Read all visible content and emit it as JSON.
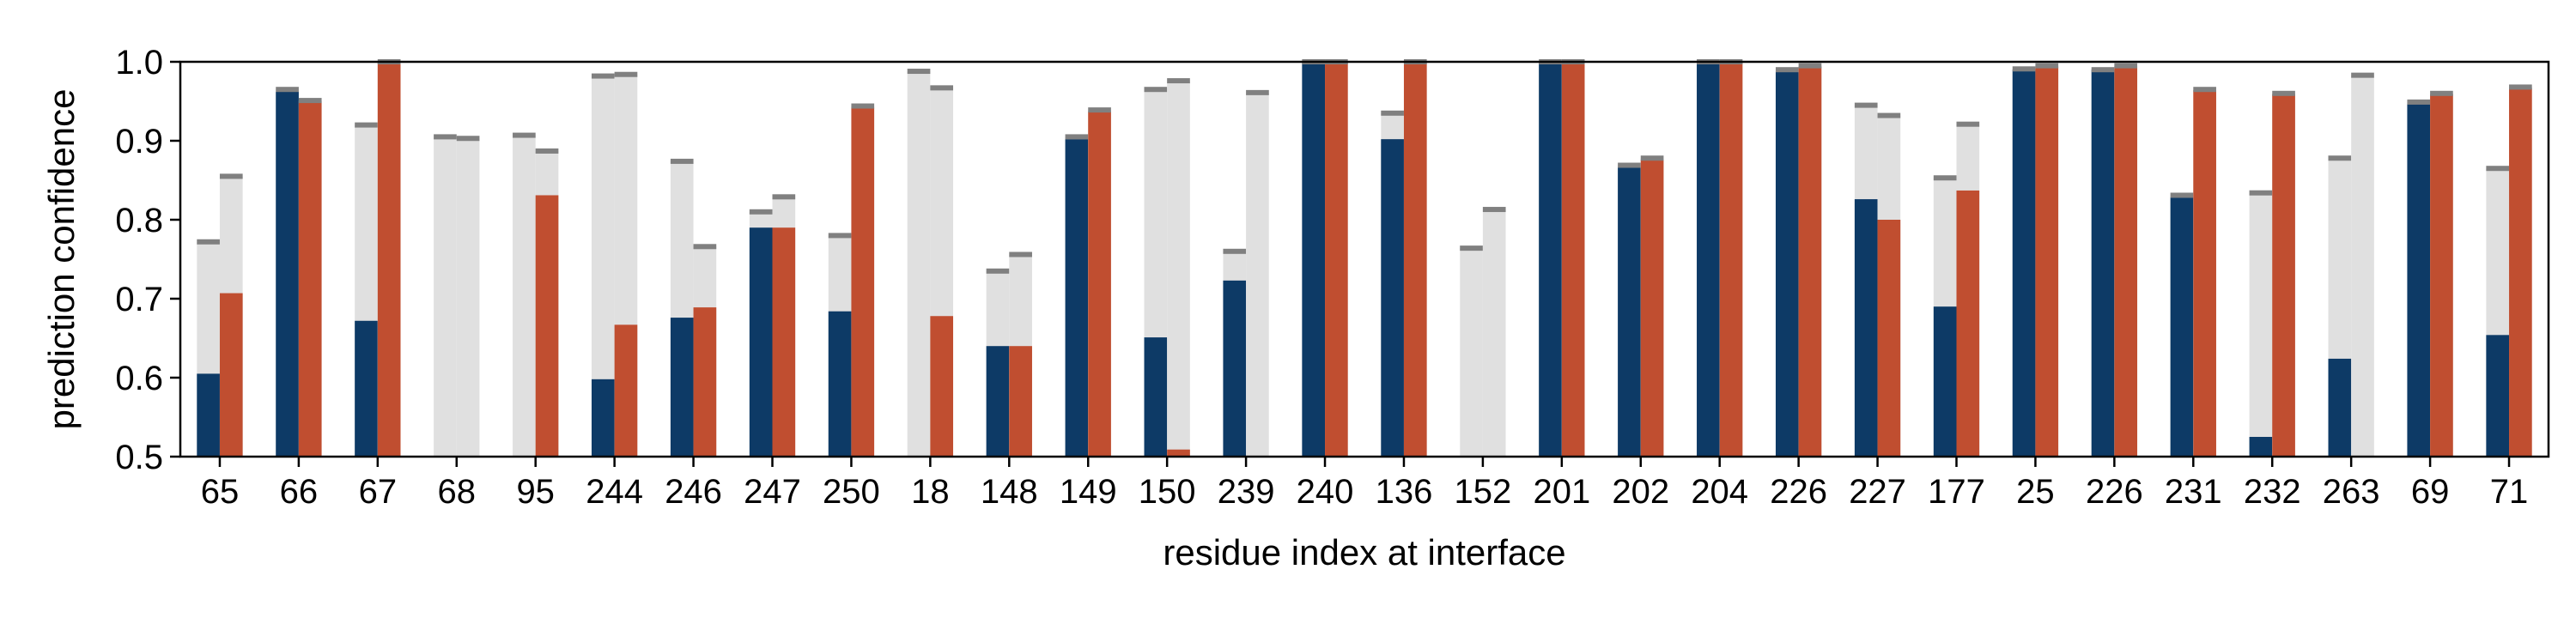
{
  "chart_data": {
    "type": "bar",
    "title": "",
    "xlabel": "residue index at interface",
    "ylabel": "prediction confidence",
    "ylim": [
      0.5,
      1.0
    ],
    "yticks": [
      "0.5",
      "0.6",
      "0.7",
      "0.8",
      "0.9",
      "1.0"
    ],
    "grid": false,
    "legend": "none",
    "colors": {
      "series_a": "#0d3a66",
      "series_b": "#c04e30",
      "background_bar": "#e0e0e0",
      "cap": "#808080"
    },
    "categories": [
      "65",
      "66",
      "67",
      "68",
      "95",
      "244",
      "246",
      "247",
      "250",
      "18",
      "148",
      "149",
      "150",
      "239",
      "240",
      "136",
      "152",
      "201",
      "202",
      "204",
      "226",
      "227",
      "177",
      "25",
      "226",
      "231",
      "232",
      "263",
      "69",
      "71"
    ],
    "series": [
      {
        "values": [
          0.605,
          0.962,
          0.672,
          null,
          null,
          0.598,
          0.676,
          0.79,
          0.684,
          null,
          0.64,
          0.902,
          0.651,
          0.723,
          1.0,
          0.902,
          null,
          1.0,
          0.866,
          1.0,
          0.988,
          0.826,
          0.69,
          0.99,
          0.99,
          0.828,
          0.525,
          0.624,
          0.947,
          0.654
        ],
        "caps": [
          0.772,
          0.965,
          0.92,
          0.905,
          0.907,
          0.982,
          0.874,
          0.81,
          0.78,
          0.988,
          0.735,
          0.905,
          0.965,
          0.76,
          1.0,
          0.935,
          0.764,
          1.0,
          0.869,
          1.0,
          0.99,
          0.945,
          0.853,
          0.991,
          0.99,
          0.831,
          0.834,
          0.878,
          0.949,
          0.865
        ]
      },
      {
        "values": [
          0.707,
          0.95,
          1.0,
          null,
          0.831,
          0.667,
          0.689,
          0.79,
          0.942,
          0.678,
          0.64,
          0.937,
          0.509,
          null,
          1.0,
          1.0,
          null,
          1.0,
          0.876,
          1.0,
          0.994,
          0.8,
          0.837,
          0.994,
          0.994,
          0.964,
          0.959,
          null,
          0.959,
          0.967
        ],
        "caps": [
          0.855,
          0.951,
          1.0,
          0.903,
          0.887,
          0.984,
          0.766,
          0.829,
          0.944,
          0.967,
          0.756,
          0.939,
          0.976,
          0.961,
          1.0,
          1.0,
          0.813,
          1.0,
          0.878,
          1.0,
          0.995,
          0.932,
          0.921,
          0.995,
          0.995,
          0.965,
          0.96,
          0.983,
          0.96,
          0.968
        ]
      }
    ]
  }
}
